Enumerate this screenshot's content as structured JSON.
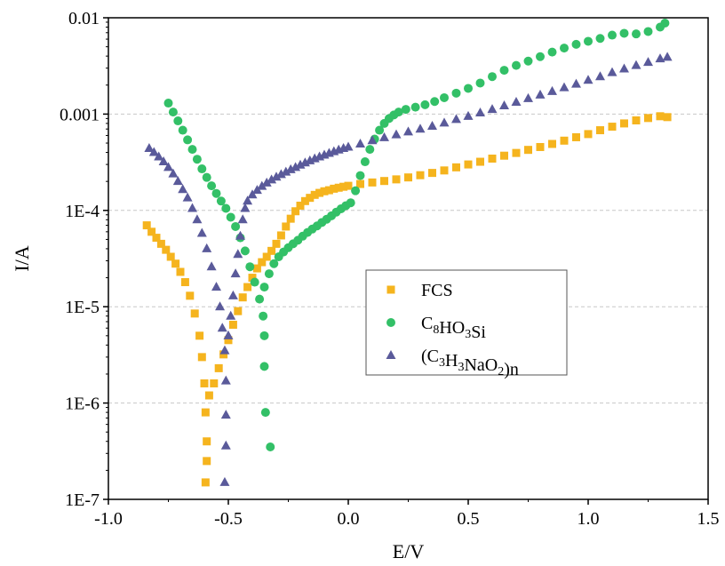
{
  "chart_data": {
    "type": "scatter",
    "xlabel": "E/V",
    "ylabel": "I/A",
    "xlim": [
      -1.0,
      1.5
    ],
    "ylim": [
      1e-07,
      0.01
    ],
    "yscale": "log",
    "x_ticks": [
      "-1.0",
      "-0.5",
      "0.0",
      "0.5",
      "1.0",
      "1.5"
    ],
    "y_ticks": [
      "1E-7",
      "1E-6",
      "1E-5",
      "1E-4",
      "0.001",
      "0.01"
    ],
    "grid": "horizontal-dashed",
    "legend_position": "center-right",
    "series": [
      {
        "name": "FCS",
        "name_parts": [
          {
            "t": "FCS"
          }
        ],
        "marker": "square",
        "color": "#F5B41E",
        "points": [
          [
            -0.84,
            7e-05
          ],
          [
            -0.82,
            6e-05
          ],
          [
            -0.8,
            5.2e-05
          ],
          [
            -0.78,
            4.5e-05
          ],
          [
            -0.76,
            3.9e-05
          ],
          [
            -0.74,
            3.3e-05
          ],
          [
            -0.72,
            2.8e-05
          ],
          [
            -0.7,
            2.3e-05
          ],
          [
            -0.68,
            1.8e-05
          ],
          [
            -0.66,
            1.3e-05
          ],
          [
            -0.64,
            8.5e-06
          ],
          [
            -0.62,
            5e-06
          ],
          [
            -0.61,
            3e-06
          ],
          [
            -0.6,
            1.6e-06
          ],
          [
            -0.595,
            8e-07
          ],
          [
            -0.59,
            4e-07
          ],
          [
            -0.59,
            2.5e-07
          ],
          [
            -0.595,
            1.5e-07
          ],
          [
            -0.58,
            1.2e-06
          ],
          [
            -0.56,
            1.6e-06
          ],
          [
            -0.54,
            2.3e-06
          ],
          [
            -0.52,
            3.2e-06
          ],
          [
            -0.5,
            4.5e-06
          ],
          [
            -0.48,
            6.5e-06
          ],
          [
            -0.46,
            9e-06
          ],
          [
            -0.44,
            1.25e-05
          ],
          [
            -0.42,
            1.6e-05
          ],
          [
            -0.4,
            2e-05
          ],
          [
            -0.38,
            2.5e-05
          ],
          [
            -0.36,
            2.9e-05
          ],
          [
            -0.34,
            3.3e-05
          ],
          [
            -0.32,
            3.8e-05
          ],
          [
            -0.3,
            4.5e-05
          ],
          [
            -0.28,
            5.5e-05
          ],
          [
            -0.26,
            6.8e-05
          ],
          [
            -0.24,
            8.2e-05
          ],
          [
            -0.22,
            9.8e-05
          ],
          [
            -0.2,
            0.000112
          ],
          [
            -0.18,
            0.000125
          ],
          [
            -0.16,
            0.000135
          ],
          [
            -0.14,
            0.000145
          ],
          [
            -0.12,
            0.000152
          ],
          [
            -0.1,
            0.000158
          ],
          [
            -0.08,
            0.000162
          ],
          [
            -0.06,
            0.000168
          ],
          [
            -0.04,
            0.000172
          ],
          [
            -0.02,
            0.000176
          ],
          [
            0.0,
            0.00018
          ],
          [
            0.05,
            0.000188
          ],
          [
            0.1,
            0.000195
          ],
          [
            0.15,
            0.000202
          ],
          [
            0.2,
            0.00021
          ],
          [
            0.25,
            0.00022
          ],
          [
            0.3,
            0.000232
          ],
          [
            0.35,
            0.000245
          ],
          [
            0.4,
            0.00026
          ],
          [
            0.45,
            0.00028
          ],
          [
            0.5,
            0.0003
          ],
          [
            0.55,
            0.00032
          ],
          [
            0.6,
            0.000345
          ],
          [
            0.65,
            0.00037
          ],
          [
            0.7,
            0.000395
          ],
          [
            0.75,
            0.000425
          ],
          [
            0.8,
            0.000455
          ],
          [
            0.85,
            0.00049
          ],
          [
            0.9,
            0.00053
          ],
          [
            0.95,
            0.000575
          ],
          [
            1.0,
            0.00062
          ],
          [
            1.05,
            0.00068
          ],
          [
            1.1,
            0.00074
          ],
          [
            1.15,
            0.0008
          ],
          [
            1.2,
            0.00086
          ],
          [
            1.25,
            0.00091
          ],
          [
            1.3,
            0.00095
          ],
          [
            1.33,
            0.00093
          ]
        ]
      },
      {
        "name": "C8HO3Si",
        "name_parts": [
          {
            "t": "C"
          },
          {
            "t": "8",
            "sub": true
          },
          {
            "t": "HO"
          },
          {
            "t": "3",
            "sub": true
          },
          {
            "t": "Si"
          }
        ],
        "marker": "circle",
        "color": "#33C067",
        "points": [
          [
            -0.75,
            0.0013
          ],
          [
            -0.73,
            0.00105
          ],
          [
            -0.71,
            0.00085
          ],
          [
            -0.69,
            0.00068
          ],
          [
            -0.67,
            0.00054
          ],
          [
            -0.65,
            0.00043
          ],
          [
            -0.63,
            0.00034
          ],
          [
            -0.61,
            0.00027
          ],
          [
            -0.59,
            0.00022
          ],
          [
            -0.57,
            0.00018
          ],
          [
            -0.55,
            0.00015
          ],
          [
            -0.53,
            0.000125
          ],
          [
            -0.51,
            0.000105
          ],
          [
            -0.49,
            8.5e-05
          ],
          [
            -0.47,
            6.8e-05
          ],
          [
            -0.45,
            5.2e-05
          ],
          [
            -0.43,
            3.8e-05
          ],
          [
            -0.41,
            2.6e-05
          ],
          [
            -0.39,
            1.8e-05
          ],
          [
            -0.37,
            1.2e-05
          ],
          [
            -0.355,
            8e-06
          ],
          [
            -0.35,
            5e-06
          ],
          [
            -0.35,
            2.4e-06
          ],
          [
            -0.345,
            8e-07
          ],
          [
            -0.325,
            3.5e-07
          ],
          [
            -0.35,
            1.6e-05
          ],
          [
            -0.33,
            2.2e-05
          ],
          [
            -0.31,
            2.8e-05
          ],
          [
            -0.29,
            3.3e-05
          ],
          [
            -0.27,
            3.7e-05
          ],
          [
            -0.25,
            4.1e-05
          ],
          [
            -0.23,
            4.5e-05
          ],
          [
            -0.21,
            4.9e-05
          ],
          [
            -0.19,
            5.4e-05
          ],
          [
            -0.17,
            5.9e-05
          ],
          [
            -0.15,
            6.4e-05
          ],
          [
            -0.13,
            6.9e-05
          ],
          [
            -0.11,
            7.5e-05
          ],
          [
            -0.09,
            8.1e-05
          ],
          [
            -0.07,
            8.8e-05
          ],
          [
            -0.05,
            9.6e-05
          ],
          [
            -0.03,
            0.000104
          ],
          [
            -0.01,
            0.000112
          ],
          [
            0.01,
            0.00012
          ],
          [
            0.03,
            0.00016
          ],
          [
            0.05,
            0.00023
          ],
          [
            0.07,
            0.00032
          ],
          [
            0.09,
            0.00043
          ],
          [
            0.11,
            0.00055
          ],
          [
            0.13,
            0.00068
          ],
          [
            0.15,
            0.0008
          ],
          [
            0.17,
            0.0009
          ],
          [
            0.19,
            0.00098
          ],
          [
            0.21,
            0.00105
          ],
          [
            0.24,
            0.00112
          ],
          [
            0.28,
            0.00118
          ],
          [
            0.32,
            0.00125
          ],
          [
            0.36,
            0.00135
          ],
          [
            0.4,
            0.00148
          ],
          [
            0.45,
            0.00165
          ],
          [
            0.5,
            0.00185
          ],
          [
            0.55,
            0.0021
          ],
          [
            0.6,
            0.00245
          ],
          [
            0.65,
            0.00285
          ],
          [
            0.7,
            0.0032
          ],
          [
            0.75,
            0.00355
          ],
          [
            0.8,
            0.00395
          ],
          [
            0.85,
            0.0044
          ],
          [
            0.9,
            0.00485
          ],
          [
            0.95,
            0.0053
          ],
          [
            1.0,
            0.0057
          ],
          [
            1.05,
            0.0061
          ],
          [
            1.1,
            0.0066
          ],
          [
            1.15,
            0.0069
          ],
          [
            1.2,
            0.0068
          ],
          [
            1.25,
            0.0072
          ],
          [
            1.3,
            0.008
          ],
          [
            1.32,
            0.0088
          ]
        ]
      },
      {
        "name": "(C3H3NaO2)n",
        "name_parts": [
          {
            "t": "(C"
          },
          {
            "t": "3",
            "sub": true
          },
          {
            "t": "H"
          },
          {
            "t": "3",
            "sub": true
          },
          {
            "t": "NaO"
          },
          {
            "t": "2",
            "sub": true
          },
          {
            "t": ")n"
          }
        ],
        "marker": "triangle",
        "color": "#5A5A9A",
        "points": [
          [
            -0.83,
            0.00044
          ],
          [
            -0.81,
            0.0004
          ],
          [
            -0.79,
            0.00036
          ],
          [
            -0.77,
            0.00032
          ],
          [
            -0.75,
            0.00028
          ],
          [
            -0.73,
            0.00024
          ],
          [
            -0.71,
            0.0002
          ],
          [
            -0.69,
            0.000165
          ],
          [
            -0.67,
            0.000135
          ],
          [
            -0.65,
            0.000105
          ],
          [
            -0.63,
            8e-05
          ],
          [
            -0.61,
            5.8e-05
          ],
          [
            -0.59,
            4e-05
          ],
          [
            -0.57,
            2.6e-05
          ],
          [
            -0.55,
            1.6e-05
          ],
          [
            -0.535,
            1e-05
          ],
          [
            -0.525,
            6e-06
          ],
          [
            -0.515,
            3.5e-06
          ],
          [
            -0.51,
            1.7e-06
          ],
          [
            -0.51,
            7.5e-07
          ],
          [
            -0.51,
            3.6e-07
          ],
          [
            -0.515,
            1.5e-07
          ],
          [
            -0.5,
            5e-06
          ],
          [
            -0.49,
            8e-06
          ],
          [
            -0.48,
            1.3e-05
          ],
          [
            -0.47,
            2.2e-05
          ],
          [
            -0.46,
            3.5e-05
          ],
          [
            -0.45,
            5.4e-05
          ],
          [
            -0.44,
            8e-05
          ],
          [
            -0.43,
            0.000105
          ],
          [
            -0.42,
            0.000125
          ],
          [
            -0.4,
            0.000145
          ],
          [
            -0.38,
            0.000162
          ],
          [
            -0.36,
            0.000178
          ],
          [
            -0.34,
            0.000193
          ],
          [
            -0.32,
            0.000208
          ],
          [
            -0.3,
            0.000222
          ],
          [
            -0.28,
            0.000236
          ],
          [
            -0.26,
            0.00025
          ],
          [
            -0.24,
            0.000265
          ],
          [
            -0.22,
            0.00028
          ],
          [
            -0.2,
            0.000296
          ],
          [
            -0.18,
            0.000312
          ],
          [
            -0.16,
            0.000328
          ],
          [
            -0.14,
            0.000344
          ],
          [
            -0.12,
            0.00036
          ],
          [
            -0.1,
            0.000376
          ],
          [
            -0.08,
            0.000392
          ],
          [
            -0.06,
            0.000408
          ],
          [
            -0.04,
            0.000424
          ],
          [
            -0.02,
            0.00044
          ],
          [
            0.0,
            0.000455
          ],
          [
            0.05,
            0.00049
          ],
          [
            0.1,
            0.00053
          ],
          [
            0.15,
            0.00057
          ],
          [
            0.2,
            0.00061
          ],
          [
            0.25,
            0.000655
          ],
          [
            0.3,
            0.0007
          ],
          [
            0.35,
            0.00075
          ],
          [
            0.4,
            0.00081
          ],
          [
            0.45,
            0.00088
          ],
          [
            0.5,
            0.00095
          ],
          [
            0.55,
            0.00103
          ],
          [
            0.6,
            0.00112
          ],
          [
            0.65,
            0.00122
          ],
          [
            0.7,
            0.00133
          ],
          [
            0.75,
            0.00145
          ],
          [
            0.8,
            0.00158
          ],
          [
            0.85,
            0.00172
          ],
          [
            0.9,
            0.00188
          ],
          [
            0.95,
            0.00205
          ],
          [
            1.0,
            0.00225
          ],
          [
            1.05,
            0.00245
          ],
          [
            1.1,
            0.0027
          ],
          [
            1.15,
            0.00295
          ],
          [
            1.2,
            0.0032
          ],
          [
            1.25,
            0.00345
          ],
          [
            1.3,
            0.00375
          ],
          [
            1.33,
            0.0039
          ]
        ]
      }
    ]
  }
}
